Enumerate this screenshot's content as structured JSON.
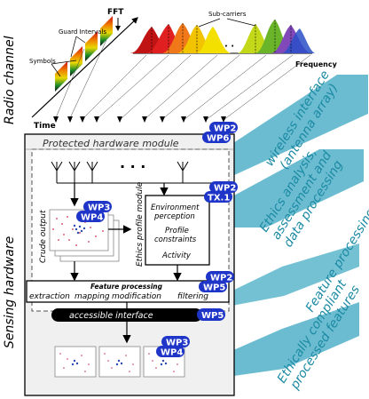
{
  "radio": {
    "side_label": "Radio channel",
    "fft": "FFT",
    "guard_intervals": "Guard Intervals",
    "symbols": "Symbols",
    "sub_carriers": "Sub-carriers",
    "frequency": "Frequency",
    "time": "Time",
    "dots": "· ·"
  },
  "sensing": {
    "side_label": "Sensing hardware",
    "protected_module": "Protected hardware module",
    "antenna_dots": "· · ·",
    "crude_output": "Crude output",
    "ethics_profile_module": "Ethics profile module",
    "ethics_box": [
      "Environment",
      "perception",
      "Profile",
      "constraints",
      "Activity"
    ],
    "feature_processing_title": "Feature processing",
    "feature_steps": [
      "extraction",
      "mapping",
      "modification",
      "filtering"
    ],
    "accessible_interface": "accessible interface"
  },
  "badges": [
    "WP2",
    "WP6",
    "WP2",
    "TX.1",
    "WP3",
    "WP4",
    "WP5",
    "WP2",
    "WP5",
    "WP3",
    "WP4"
  ],
  "bands": [
    [
      "wireless interface",
      "(antenna array)"
    ],
    [
      "Ethics analysis,",
      "assessment and",
      "data processing"
    ],
    [
      "Feature processing"
    ],
    [
      "Ethically compliant",
      "processed features"
    ]
  ],
  "colors": {
    "badge": "#1f35c8",
    "band_fill": "#3aa6c2",
    "band_text": "#1b8aa3",
    "protected_bg": "#ffffff",
    "lower_bg": "#eeeeee"
  }
}
